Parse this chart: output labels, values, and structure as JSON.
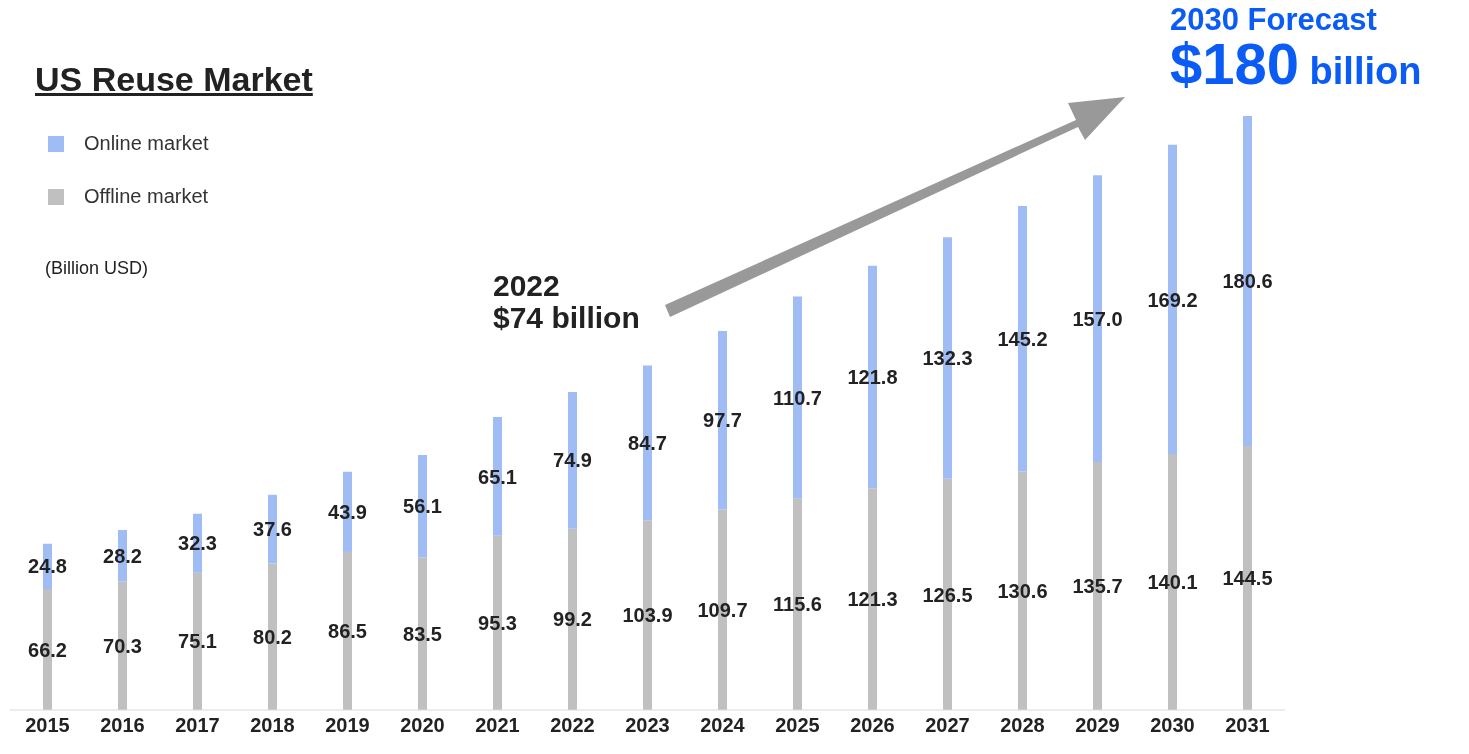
{
  "chart_data": {
    "type": "bar",
    "title": "US Reuse Market",
    "stacked": true,
    "legend": "top left",
    "categories": [
      "2015",
      "2016",
      "2017",
      "2018",
      "2019",
      "2020",
      "2021",
      "2022",
      "2023",
      "2024",
      "2025",
      "2026",
      "2027",
      "2028",
      "2029",
      "2030",
      "2031"
    ],
    "series": [
      {
        "name": "Offline market",
        "color": "#c0c0c0",
        "values": [
          66.2,
          70.3,
          75.1,
          80.2,
          86.5,
          83.5,
          95.3,
          99.2,
          103.9,
          109.7,
          115.6,
          121.3,
          126.5,
          130.6,
          135.7,
          140.1,
          144.5
        ],
        "value_labels": [
          "66.2",
          "70.3",
          "75.1",
          "80.2",
          "86.5",
          "83.5",
          "95.3",
          "99.2",
          "103.9",
          "109.7",
          "115.6",
          "121.3",
          "126.5",
          "130.6",
          "135.7",
          "140.1",
          "144.5"
        ]
      },
      {
        "name": "Online market",
        "color": "#a0bcf5",
        "values": [
          24.8,
          28.2,
          32.3,
          37.6,
          43.9,
          56.1,
          65.1,
          74.9,
          84.7,
          97.7,
          110.7,
          121.8,
          132.3,
          145.2,
          157.0,
          169.2,
          180.6
        ],
        "value_labels": [
          "24.8",
          "28.2",
          "32.3",
          "37.6",
          "43.9",
          "56.1",
          "65.1",
          "74.9",
          "84.7",
          "97.7",
          "110.7",
          "121.8",
          "132.3",
          "145.2",
          "157.0",
          "169.2",
          "180.6"
        ]
      }
    ],
    "annotations": [
      "(Billion USD)",
      "2022\n$74 billion",
      "2030 Forecast",
      "$180 billion"
    ]
  }
}
